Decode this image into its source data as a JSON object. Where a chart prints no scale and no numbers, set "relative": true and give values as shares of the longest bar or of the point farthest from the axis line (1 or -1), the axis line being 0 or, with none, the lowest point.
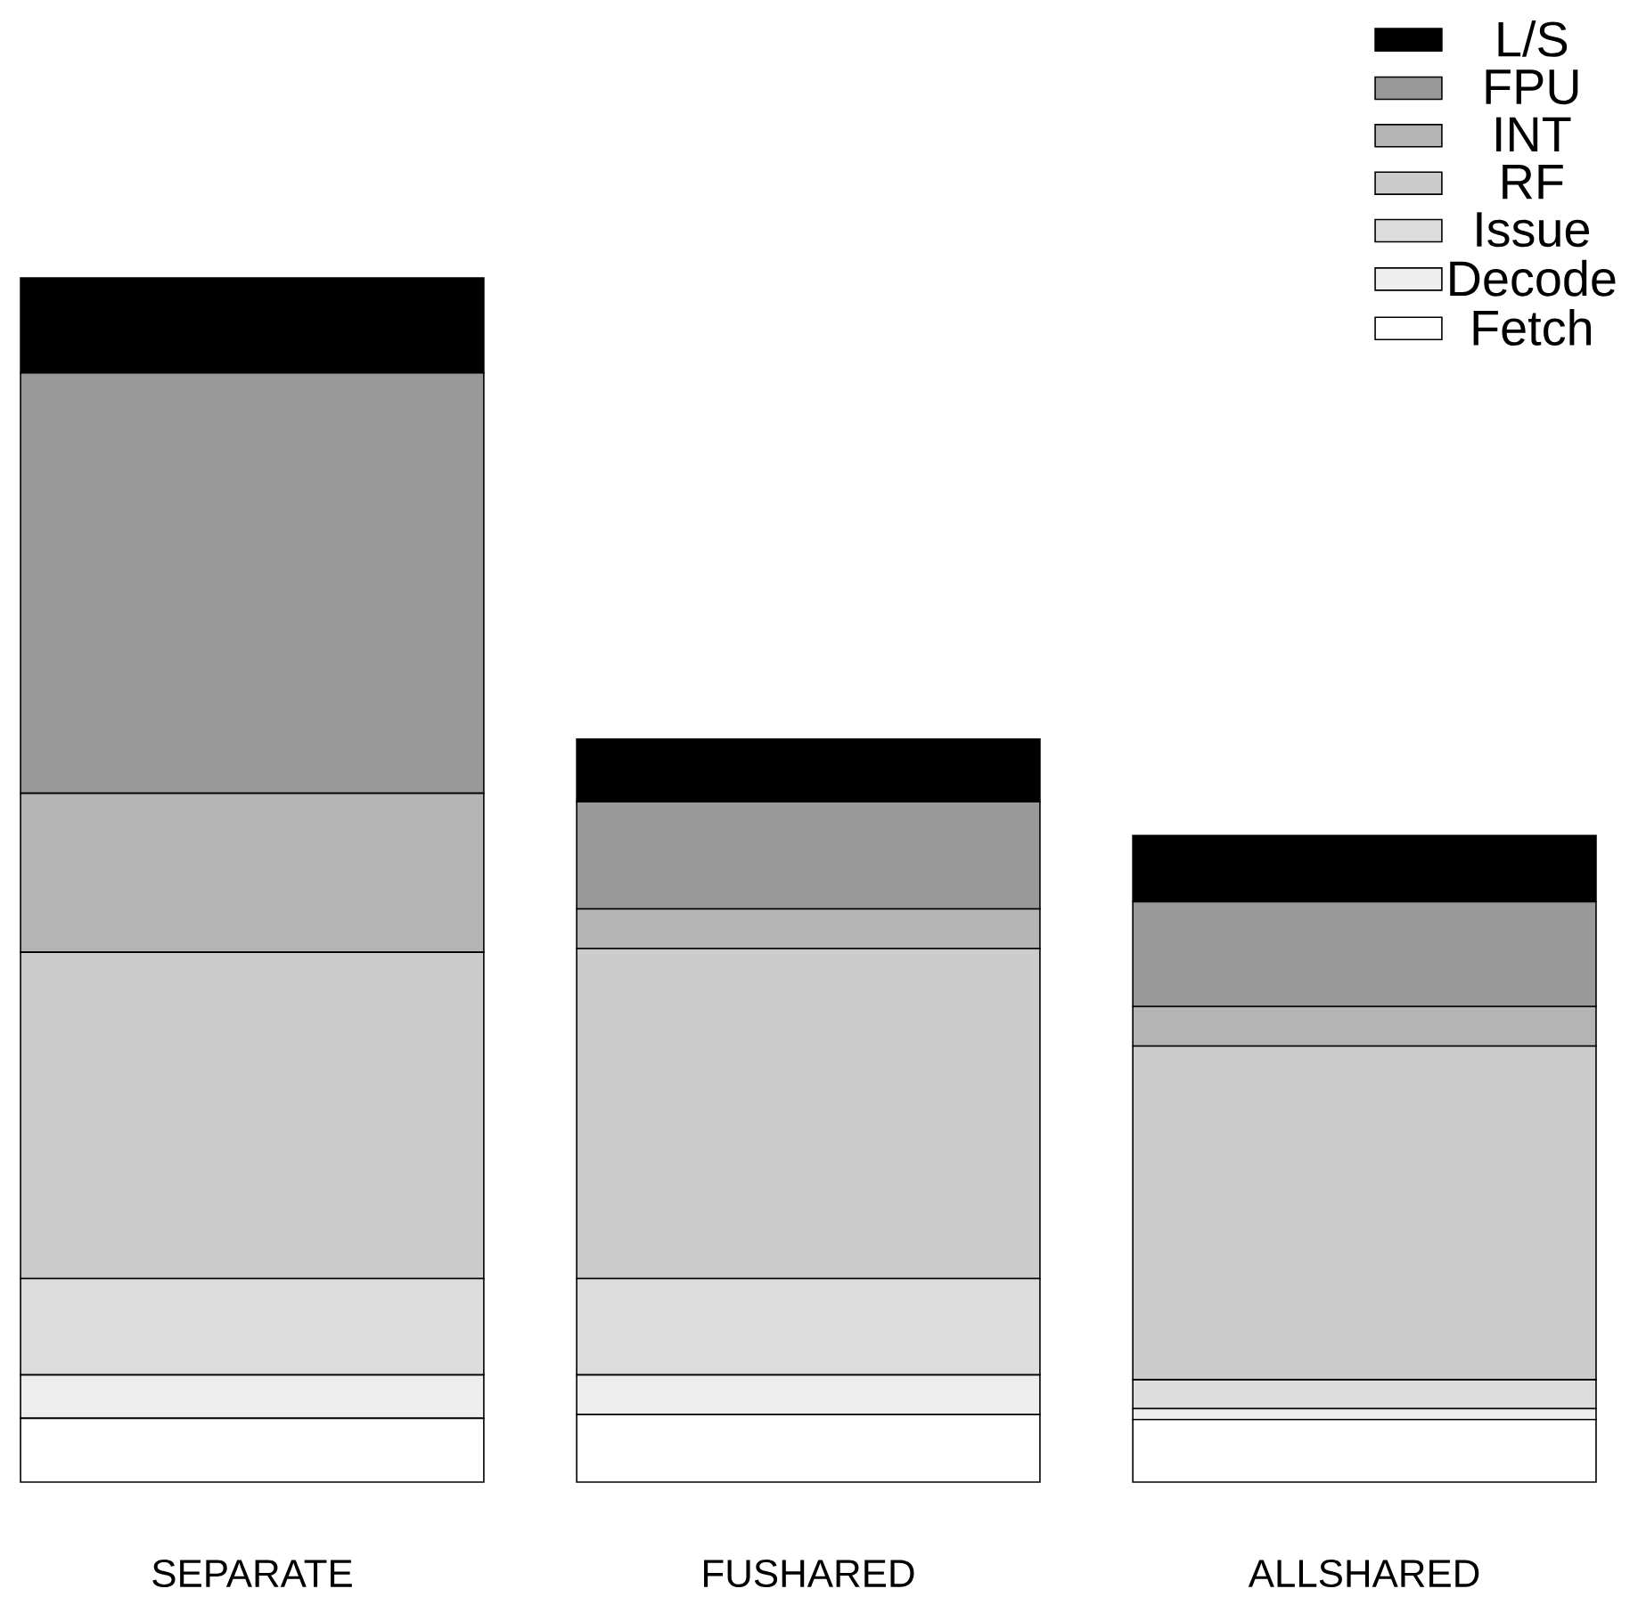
{
  "chart_data": {
    "type": "bar",
    "stacked": true,
    "relative": true,
    "legend": "top right",
    "categories": [
      "SEPARATE",
      "FUSHARED",
      "ALLSHARED"
    ],
    "series": [
      {
        "name": "Fetch",
        "color": "#ffffff",
        "values": [
          0.053,
          0.056,
          0.052
        ]
      },
      {
        "name": "Decode",
        "color": "#eeeeee",
        "values": [
          0.036,
          0.033,
          0.009
        ]
      },
      {
        "name": "Issue",
        "color": "#dddddd",
        "values": [
          0.08,
          0.08,
          0.024
        ]
      },
      {
        "name": "RF",
        "color": "#cccccc",
        "values": [
          0.271,
          0.274,
          0.277
        ]
      },
      {
        "name": "INT",
        "color": "#b4b4b4",
        "values": [
          0.132,
          0.033,
          0.033
        ]
      },
      {
        "name": "FPU",
        "color": "#999999",
        "values": [
          0.349,
          0.089,
          0.087
        ]
      },
      {
        "name": "L/S",
        "color": "#000000",
        "values": [
          0.079,
          0.052,
          0.055
        ]
      }
    ]
  }
}
